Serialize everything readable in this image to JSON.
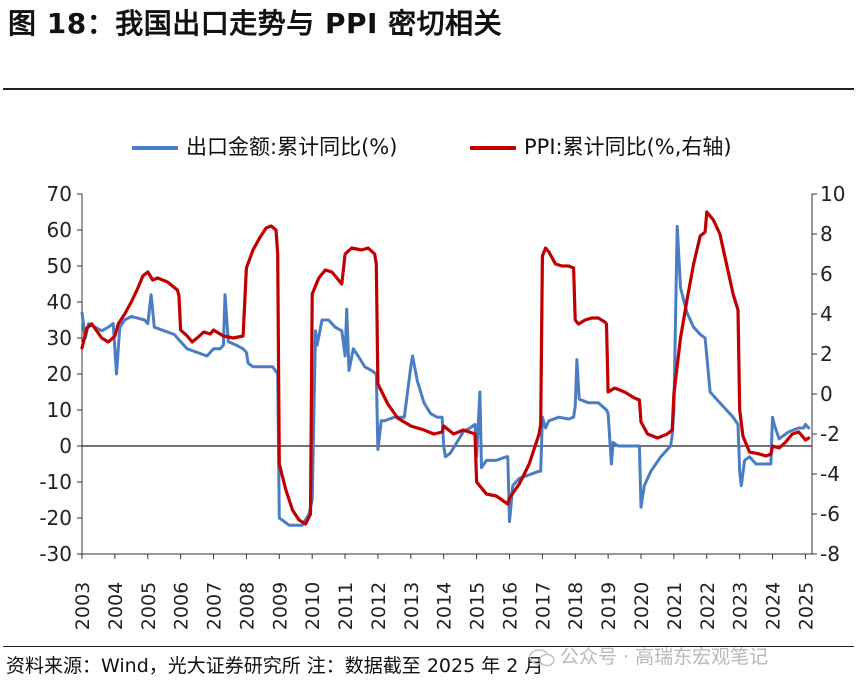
{
  "title": "图 18：我国出口走势与 PPI 密切相关",
  "source": "资料来源：Wind，光大证券研究所 注：数据截至 2025 年 2 月",
  "watermark": "公众号 · 高瑞东宏观笔记",
  "colors": {
    "export": "#4a7dc4",
    "ppi": "#c00000",
    "axis": "#333333",
    "zero": "#222222"
  },
  "chart_data": {
    "type": "line",
    "title": "我国出口走势与 PPI 密切相关",
    "xlabel": "",
    "ylabel": "",
    "legend_position": "top-center",
    "grid": false,
    "x_range": [
      2003,
      2025.2
    ],
    "x_ticks": [
      "2003",
      "2004",
      "2005",
      "2006",
      "2007",
      "2008",
      "2009",
      "2010",
      "2011",
      "2012",
      "2013",
      "2014",
      "2015",
      "2016",
      "2017",
      "2018",
      "2019",
      "2020",
      "2021",
      "2022",
      "2023",
      "2024",
      "2025"
    ],
    "y_left": {
      "range": [
        -30,
        70
      ],
      "ticks": [
        "70",
        "60",
        "50",
        "40",
        "30",
        "20",
        "10",
        "0",
        "-10",
        "-20",
        "-30"
      ]
    },
    "y_right": {
      "range": [
        -8,
        10
      ],
      "ticks": [
        "10",
        "8",
        "6",
        "4",
        "2",
        "0",
        "-2",
        "-4",
        "-6",
        "-8"
      ]
    },
    "series": [
      {
        "name": "出口金额:累计同比(%)",
        "axis": "left",
        "points": [
          [
            2003.0,
            37
          ],
          [
            2003.1,
            30
          ],
          [
            2003.2,
            34
          ],
          [
            2003.4,
            33
          ],
          [
            2003.6,
            32
          ],
          [
            2003.8,
            33
          ],
          [
            2003.95,
            34
          ],
          [
            2004.05,
            20
          ],
          [
            2004.15,
            33
          ],
          [
            2004.3,
            35
          ],
          [
            2004.5,
            36
          ],
          [
            2004.7,
            35.5
          ],
          [
            2004.9,
            35
          ],
          [
            2005.0,
            34
          ],
          [
            2005.1,
            42
          ],
          [
            2005.2,
            33
          ],
          [
            2005.5,
            32
          ],
          [
            2005.8,
            31
          ],
          [
            2006.0,
            29
          ],
          [
            2006.2,
            27
          ],
          [
            2006.5,
            26
          ],
          [
            2006.8,
            25
          ],
          [
            2007.0,
            27
          ],
          [
            2007.2,
            27
          ],
          [
            2007.3,
            28
          ],
          [
            2007.35,
            42
          ],
          [
            2007.45,
            29
          ],
          [
            2007.7,
            28
          ],
          [
            2007.9,
            27
          ],
          [
            2008.0,
            26
          ],
          [
            2008.05,
            23
          ],
          [
            2008.2,
            22
          ],
          [
            2008.4,
            22
          ],
          [
            2008.6,
            22
          ],
          [
            2008.8,
            22
          ],
          [
            2008.95,
            20
          ],
          [
            2009.0,
            -20
          ],
          [
            2009.15,
            -21
          ],
          [
            2009.3,
            -22
          ],
          [
            2009.5,
            -22
          ],
          [
            2009.7,
            -22
          ],
          [
            2009.9,
            -19
          ],
          [
            2010.0,
            -15
          ],
          [
            2010.1,
            32
          ],
          [
            2010.15,
            28
          ],
          [
            2010.3,
            35
          ],
          [
            2010.5,
            35
          ],
          [
            2010.7,
            33
          ],
          [
            2010.9,
            32
          ],
          [
            2011.0,
            25
          ],
          [
            2011.05,
            38
          ],
          [
            2011.12,
            21
          ],
          [
            2011.25,
            27
          ],
          [
            2011.4,
            25
          ],
          [
            2011.6,
            22
          ],
          [
            2011.8,
            21
          ],
          [
            2011.95,
            20
          ],
          [
            2012.0,
            -1
          ],
          [
            2012.1,
            7
          ],
          [
            2012.2,
            7
          ],
          [
            2012.5,
            8
          ],
          [
            2012.8,
            8
          ],
          [
            2013.0,
            22
          ],
          [
            2013.05,
            25
          ],
          [
            2013.2,
            18
          ],
          [
            2013.4,
            12
          ],
          [
            2013.6,
            9
          ],
          [
            2013.8,
            8
          ],
          [
            2013.95,
            8
          ],
          [
            2014.0,
            0
          ],
          [
            2014.05,
            -3
          ],
          [
            2014.2,
            -2
          ],
          [
            2014.4,
            1
          ],
          [
            2014.6,
            4
          ],
          [
            2014.8,
            5
          ],
          [
            2014.95,
            6
          ],
          [
            2015.0,
            -3
          ],
          [
            2015.1,
            15
          ],
          [
            2015.15,
            -6
          ],
          [
            2015.3,
            -4
          ],
          [
            2015.6,
            -4
          ],
          [
            2015.9,
            -3
          ],
          [
            2015.95,
            -3
          ],
          [
            2016.0,
            -21
          ],
          [
            2016.1,
            -11
          ],
          [
            2016.3,
            -9
          ],
          [
            2016.6,
            -8
          ],
          [
            2016.9,
            -7
          ],
          [
            2016.95,
            -7
          ],
          [
            2017.0,
            8
          ],
          [
            2017.1,
            5
          ],
          [
            2017.2,
            7
          ],
          [
            2017.5,
            8
          ],
          [
            2017.8,
            7.5
          ],
          [
            2017.95,
            8
          ],
          [
            2018.0,
            11
          ],
          [
            2018.05,
            24
          ],
          [
            2018.12,
            13
          ],
          [
            2018.4,
            12
          ],
          [
            2018.7,
            12
          ],
          [
            2018.95,
            10
          ],
          [
            2019.0,
            9
          ],
          [
            2019.1,
            -5
          ],
          [
            2019.15,
            1
          ],
          [
            2019.3,
            0
          ],
          [
            2019.6,
            0
          ],
          [
            2019.9,
            0
          ],
          [
            2019.95,
            0
          ],
          [
            2020.0,
            -17
          ],
          [
            2020.1,
            -11
          ],
          [
            2020.3,
            -7
          ],
          [
            2020.6,
            -3
          ],
          [
            2020.9,
            0
          ],
          [
            2020.95,
            3
          ],
          [
            2021.0,
            10
          ],
          [
            2021.1,
            61
          ],
          [
            2021.2,
            44
          ],
          [
            2021.4,
            37
          ],
          [
            2021.6,
            33
          ],
          [
            2021.8,
            31
          ],
          [
            2021.95,
            30
          ],
          [
            2022.0,
            25
          ],
          [
            2022.1,
            15
          ],
          [
            2022.3,
            13
          ],
          [
            2022.6,
            10
          ],
          [
            2022.8,
            8
          ],
          [
            2022.95,
            6
          ],
          [
            2023.0,
            -7
          ],
          [
            2023.05,
            -11
          ],
          [
            2023.15,
            -4
          ],
          [
            2023.3,
            -3
          ],
          [
            2023.5,
            -5
          ],
          [
            2023.8,
            -5
          ],
          [
            2023.95,
            -5
          ],
          [
            2024.0,
            8
          ],
          [
            2024.05,
            6
          ],
          [
            2024.2,
            2
          ],
          [
            2024.5,
            4
          ],
          [
            2024.8,
            5
          ],
          [
            2024.95,
            5
          ],
          [
            2025.0,
            6
          ],
          [
            2025.1,
            5
          ]
        ]
      },
      {
        "name": "PPI:累计同比(%,右轴)",
        "axis": "right",
        "points": [
          [
            2003.0,
            2.3
          ],
          [
            2003.15,
            3.3
          ],
          [
            2003.3,
            3.5
          ],
          [
            2003.6,
            2.8
          ],
          [
            2003.8,
            2.6
          ],
          [
            2004.0,
            2.9
          ],
          [
            2004.1,
            3.5
          ],
          [
            2004.3,
            4
          ],
          [
            2004.5,
            4.6
          ],
          [
            2004.7,
            5.3
          ],
          [
            2004.85,
            5.9
          ],
          [
            2005.0,
            6.1
          ],
          [
            2005.15,
            5.7
          ],
          [
            2005.3,
            5.8
          ],
          [
            2005.6,
            5.6
          ],
          [
            2005.9,
            5.2
          ],
          [
            2005.95,
            4.9
          ],
          [
            2006.0,
            3.2
          ],
          [
            2006.2,
            2.9
          ],
          [
            2006.35,
            2.6
          ],
          [
            2006.5,
            2.8
          ],
          [
            2006.7,
            3.1
          ],
          [
            2006.9,
            3
          ],
          [
            2007.0,
            3.2
          ],
          [
            2007.3,
            2.9
          ],
          [
            2007.6,
            2.8
          ],
          [
            2007.9,
            2.9
          ],
          [
            2008.0,
            6.3
          ],
          [
            2008.2,
            7.2
          ],
          [
            2008.4,
            7.8
          ],
          [
            2008.6,
            8.3
          ],
          [
            2008.75,
            8.4
          ],
          [
            2008.9,
            8.2
          ],
          [
            2008.95,
            7
          ],
          [
            2009.0,
            -3.5
          ],
          [
            2009.2,
            -4.8
          ],
          [
            2009.4,
            -5.8
          ],
          [
            2009.6,
            -6.3
          ],
          [
            2009.8,
            -6.5
          ],
          [
            2009.95,
            -6
          ],
          [
            2010.0,
            5
          ],
          [
            2010.2,
            5.8
          ],
          [
            2010.4,
            6.2
          ],
          [
            2010.6,
            6.1
          ],
          [
            2010.9,
            5.5
          ],
          [
            2011.0,
            7
          ],
          [
            2011.2,
            7.3
          ],
          [
            2011.5,
            7.2
          ],
          [
            2011.7,
            7.3
          ],
          [
            2011.9,
            7.0
          ],
          [
            2011.95,
            6.5
          ],
          [
            2012.0,
            0.5
          ],
          [
            2012.3,
            -0.5
          ],
          [
            2012.6,
            -1.2
          ],
          [
            2012.9,
            -1.5
          ],
          [
            2013.0,
            -1.6
          ],
          [
            2013.4,
            -1.8
          ],
          [
            2013.7,
            -2
          ],
          [
            2013.95,
            -1.9
          ],
          [
            2014.0,
            -1.6
          ],
          [
            2014.3,
            -2.0
          ],
          [
            2014.6,
            -1.8
          ],
          [
            2014.95,
            -2
          ],
          [
            2015.0,
            -4.4
          ],
          [
            2015.3,
            -5
          ],
          [
            2015.6,
            -5.1
          ],
          [
            2015.95,
            -5.5
          ],
          [
            2016.0,
            -5.2
          ],
          [
            2016.3,
            -4.5
          ],
          [
            2016.6,
            -3.5
          ],
          [
            2016.9,
            -2
          ],
          [
            2016.95,
            -1.5
          ],
          [
            2017.0,
            6.9
          ],
          [
            2017.1,
            7.3
          ],
          [
            2017.2,
            7.1
          ],
          [
            2017.4,
            6.5
          ],
          [
            2017.6,
            6.4
          ],
          [
            2017.8,
            6.4
          ],
          [
            2017.95,
            6.3
          ],
          [
            2018.0,
            3.7
          ],
          [
            2018.1,
            3.5
          ],
          [
            2018.3,
            3.7
          ],
          [
            2018.5,
            3.8
          ],
          [
            2018.7,
            3.8
          ],
          [
            2018.9,
            3.6
          ],
          [
            2018.95,
            3.5
          ],
          [
            2019.0,
            0.1
          ],
          [
            2019.2,
            0.3
          ],
          [
            2019.5,
            0.1
          ],
          [
            2019.8,
            -0.2
          ],
          [
            2019.95,
            -0.3
          ],
          [
            2020.0,
            -1.4
          ],
          [
            2020.2,
            -2
          ],
          [
            2020.5,
            -2.2
          ],
          [
            2020.8,
            -2
          ],
          [
            2020.95,
            -1.8
          ],
          [
            2021.0,
            0
          ],
          [
            2021.2,
            2.8
          ],
          [
            2021.4,
            4.7
          ],
          [
            2021.6,
            6.5
          ],
          [
            2021.8,
            7.9
          ],
          [
            2021.95,
            8.1
          ],
          [
            2022.0,
            9.1
          ],
          [
            2022.2,
            8.7
          ],
          [
            2022.4,
            8
          ],
          [
            2022.6,
            6.5
          ],
          [
            2022.8,
            5
          ],
          [
            2022.95,
            4.2
          ],
          [
            2023.0,
            -0.8
          ],
          [
            2023.1,
            -2.1
          ],
          [
            2023.3,
            -2.9
          ],
          [
            2023.6,
            -3
          ],
          [
            2023.8,
            -3.1
          ],
          [
            2023.95,
            -3
          ],
          [
            2024.0,
            -2.6
          ],
          [
            2024.2,
            -2.7
          ],
          [
            2024.4,
            -2.4
          ],
          [
            2024.6,
            -2.0
          ],
          [
            2024.8,
            -1.9
          ],
          [
            2024.95,
            -2.2
          ],
          [
            2025.0,
            -2.3
          ],
          [
            2025.1,
            -2.2
          ]
        ]
      }
    ]
  }
}
